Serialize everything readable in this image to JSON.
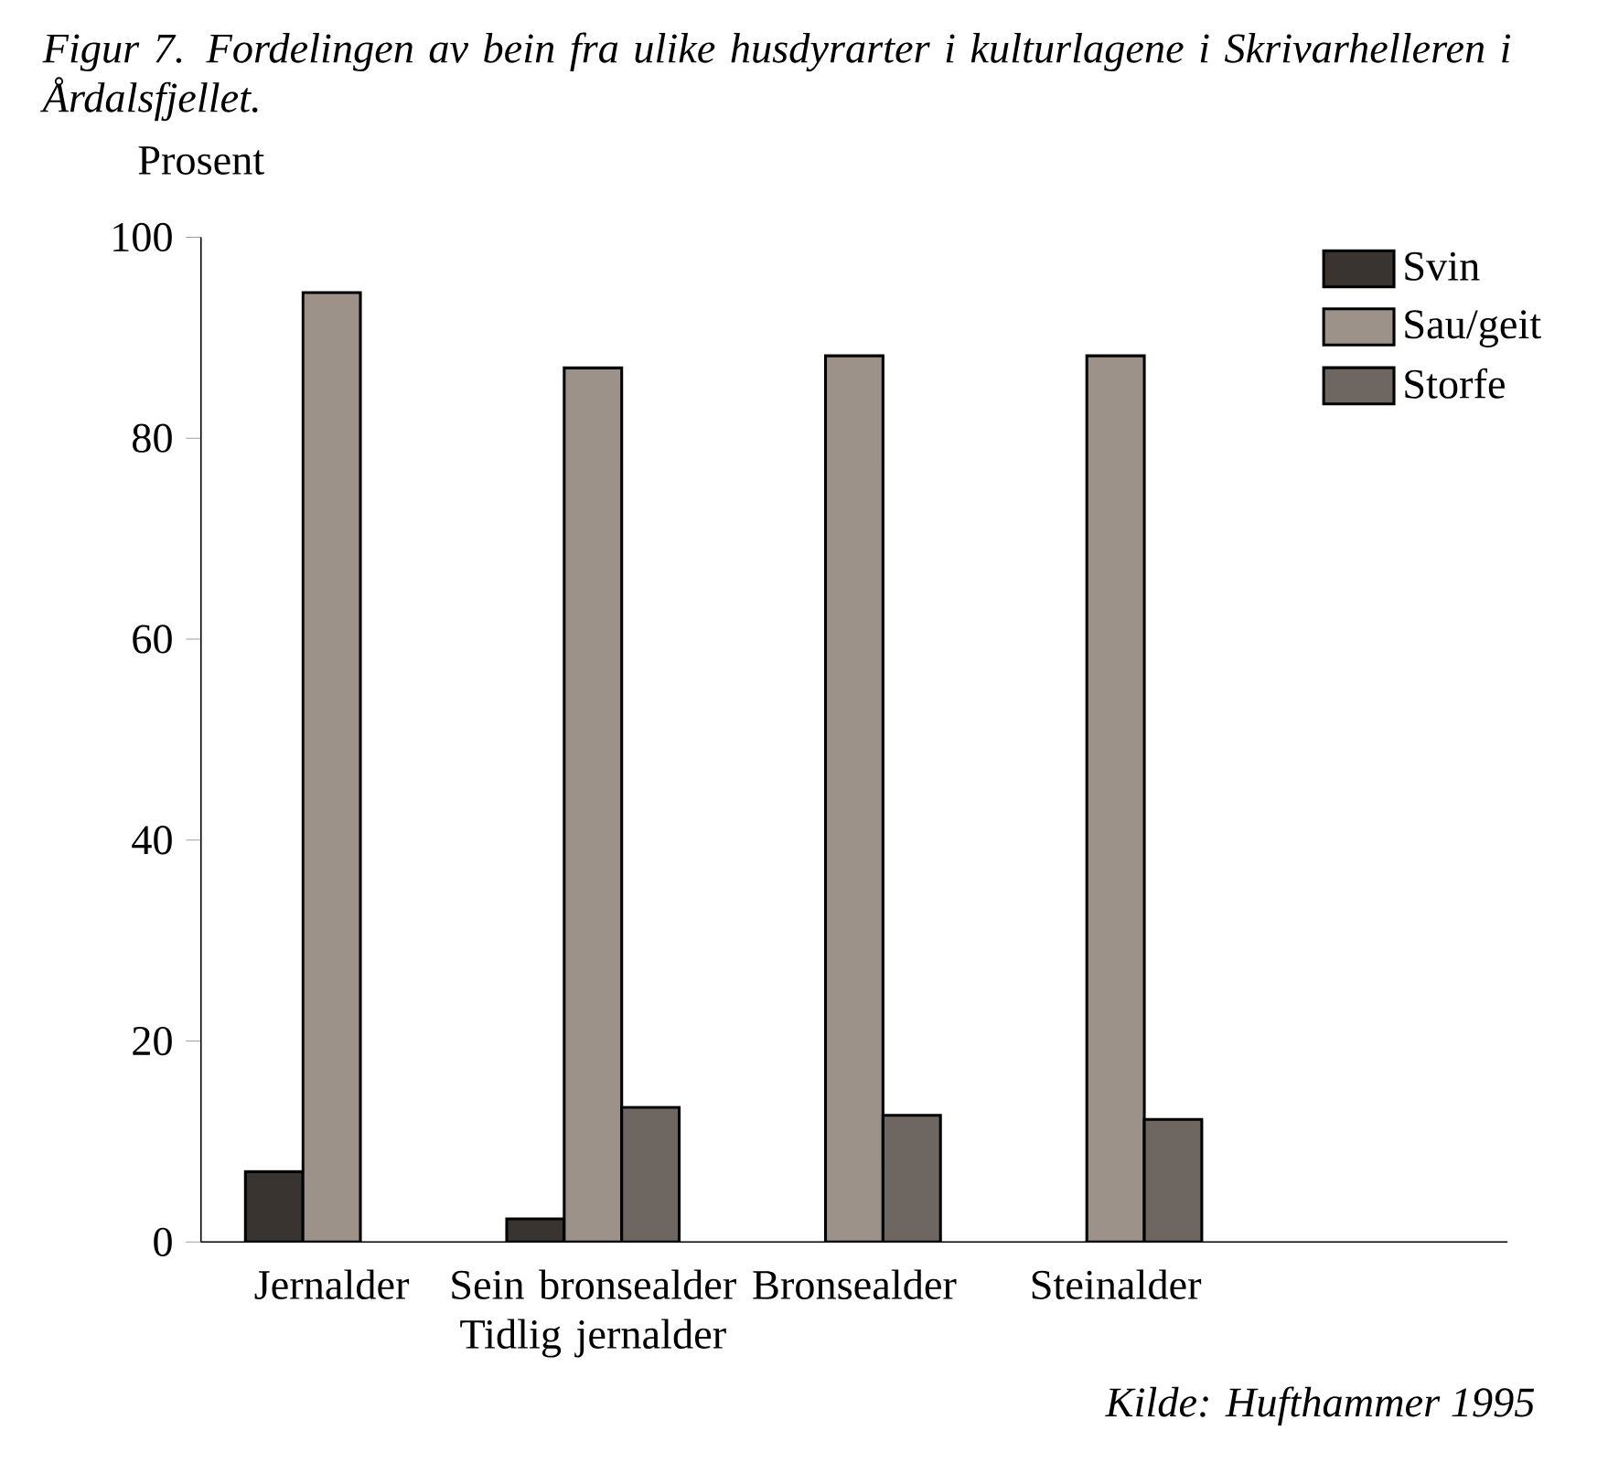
{
  "chart_data": {
    "type": "bar",
    "title": "Figur 7. Fordelingen av bein fra ulike husdyrarter i kulturlagene i Skrivarhelleren i Årdalsfjellet.",
    "ylabel": "Prosent",
    "categories": [
      "Jernalder",
      "Sein bronsealder Tidlig jernalder",
      "Bronsealder",
      "Steinalder"
    ],
    "series": [
      {
        "name": "Svin",
        "color": "#3a3430",
        "values": [
          7,
          2.3,
          null,
          null
        ]
      },
      {
        "name": "Sau/geit",
        "color": "#9c928a",
        "values": [
          94.5,
          87,
          88.2,
          88.2
        ]
      },
      {
        "name": "Storfe",
        "color": "#6e6660",
        "values": [
          null,
          13.4,
          12.6,
          12.2
        ]
      }
    ],
    "ylim": [
      0,
      100
    ],
    "yticks": [
      0,
      20,
      40,
      60,
      80,
      100
    ],
    "legend": "top right",
    "grid": false,
    "annotations": [
      "Kilde: Hufthammer 1995"
    ]
  }
}
